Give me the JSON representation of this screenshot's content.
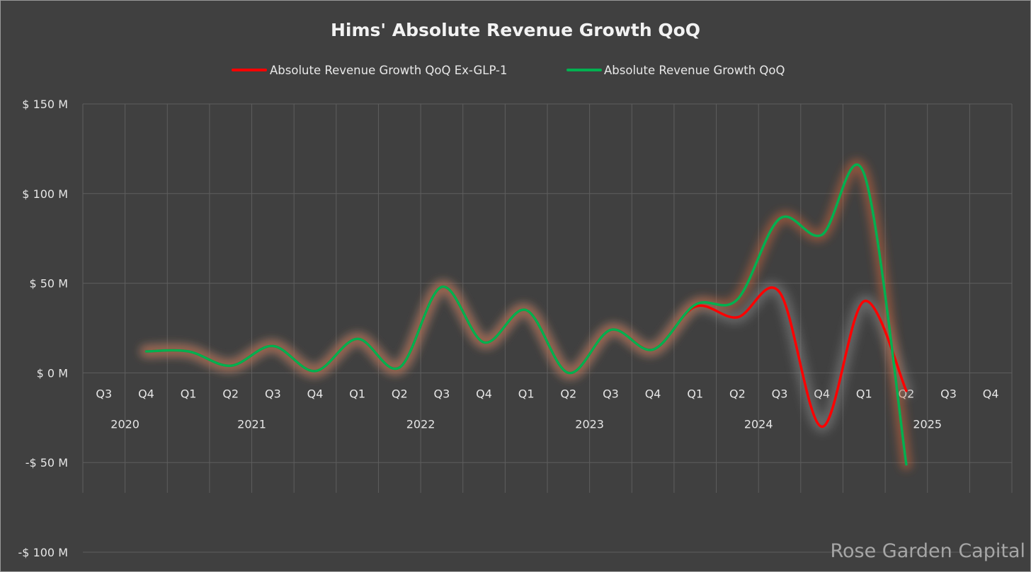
{
  "chart_data": {
    "type": "line",
    "title": "Hims' Absolute Revenue Growth QoQ",
    "categories": [
      "Q3",
      "Q4",
      "Q1",
      "Q2",
      "Q3",
      "Q4",
      "Q1",
      "Q2",
      "Q3",
      "Q4",
      "Q1",
      "Q2",
      "Q3",
      "Q4",
      "Q1",
      "Q2",
      "Q3",
      "Q4",
      "Q1",
      "Q2",
      "Q3",
      "Q4"
    ],
    "year_labels": [
      {
        "label": "2020",
        "span": [
          0,
          1
        ]
      },
      {
        "label": "2021",
        "span": [
          2,
          5
        ]
      },
      {
        "label": "2022",
        "span": [
          6,
          9
        ]
      },
      {
        "label": "2023",
        "span": [
          10,
          13
        ]
      },
      {
        "label": "2024",
        "span": [
          14,
          17
        ]
      },
      {
        "label": "2025",
        "span": [
          18,
          21
        ]
      }
    ],
    "series": [
      {
        "name": "Absolute Revenue Growth QoQ Ex-GLP-1",
        "color": "#ff0000",
        "values": [
          null,
          12,
          12,
          4,
          15,
          1,
          19,
          3,
          48,
          17,
          35,
          0,
          24,
          13,
          37,
          31,
          45,
          -30,
          40,
          -10,
          null,
          null
        ]
      },
      {
        "name": "Absolute Revenue Growth QoQ",
        "color": "#00b050",
        "values": [
          null,
          12,
          12,
          4,
          15,
          1,
          19,
          3,
          48,
          17,
          35,
          0,
          24,
          13,
          38,
          41,
          86,
          77,
          111,
          -51,
          null,
          null
        ]
      }
    ],
    "ylim": [
      -100,
      150
    ],
    "yticks": [
      150,
      100,
      50,
      0,
      -50,
      -100
    ],
    "ytick_labels": [
      "$ 150 M",
      "$ 100 M",
      "$ 50 M",
      "$ 0 M",
      "-$ 50 M",
      "-$ 100 M"
    ],
    "legend_position": "top-center",
    "grid": true,
    "xlabel": "",
    "ylabel": ""
  },
  "watermark": "Rose Garden Capital",
  "colors": {
    "background": "#404040",
    "grid": "#5e5e5e",
    "text": "#e6e6e6",
    "glow_orange": "#c8643a",
    "glow_gray": "#8a8a8a"
  }
}
